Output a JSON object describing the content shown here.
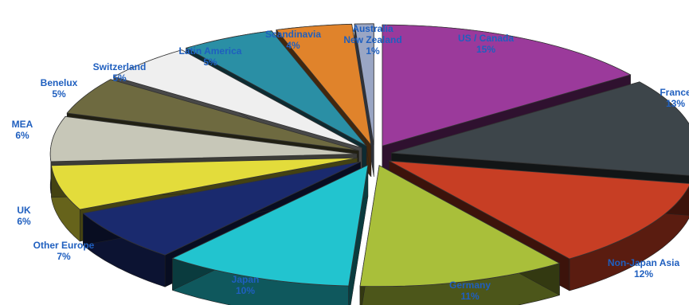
{
  "chart_data": {
    "type": "pie",
    "title": "",
    "style": "3d-exploded",
    "slices": [
      {
        "label_lines": [
          "US / Canada"
        ],
        "percent_text": "15%",
        "value": 15,
        "color": "#9b3a9b"
      },
      {
        "label_lines": [
          "France"
        ],
        "percent_text": "13%",
        "value": 13,
        "color": "#3d454a"
      },
      {
        "label_lines": [
          "Non-Japan Asia"
        ],
        "percent_text": "12%",
        "value": 12,
        "color": "#c73e24"
      },
      {
        "label_lines": [
          "Germany"
        ],
        "percent_text": "11%",
        "value": 11,
        "color": "#a9bf3a"
      },
      {
        "label_lines": [
          "Japan"
        ],
        "percent_text": "10%",
        "value": 10,
        "color": "#22c4cf"
      },
      {
        "label_lines": [
          "Other Europe"
        ],
        "percent_text": "7%",
        "value": 7,
        "color": "#1a2a6e"
      },
      {
        "label_lines": [
          "UK"
        ],
        "percent_text": "6%",
        "value": 6,
        "color": "#e3dc3b"
      },
      {
        "label_lines": [
          "MEA"
        ],
        "percent_text": "6%",
        "value": 6,
        "color": "#c7c7b8"
      },
      {
        "label_lines": [
          "Benelux"
        ],
        "percent_text": "5%",
        "value": 5,
        "color": "#6e6a40"
      },
      {
        "label_lines": [
          "Switzerland"
        ],
        "percent_text": "5%",
        "value": 5,
        "color": "#efefef"
      },
      {
        "label_lines": [
          "Latin America"
        ],
        "percent_text": "5%",
        "value": 5,
        "color": "#2a8fa5"
      },
      {
        "label_lines": [
          "Scandinavia"
        ],
        "percent_text": "4%",
        "value": 4,
        "color": "#e0832b"
      },
      {
        "label_lines": [
          "Australia",
          "New Zealand"
        ],
        "percent_text": "1%",
        "value": 1,
        "color": "#9aa6c4"
      }
    ]
  }
}
